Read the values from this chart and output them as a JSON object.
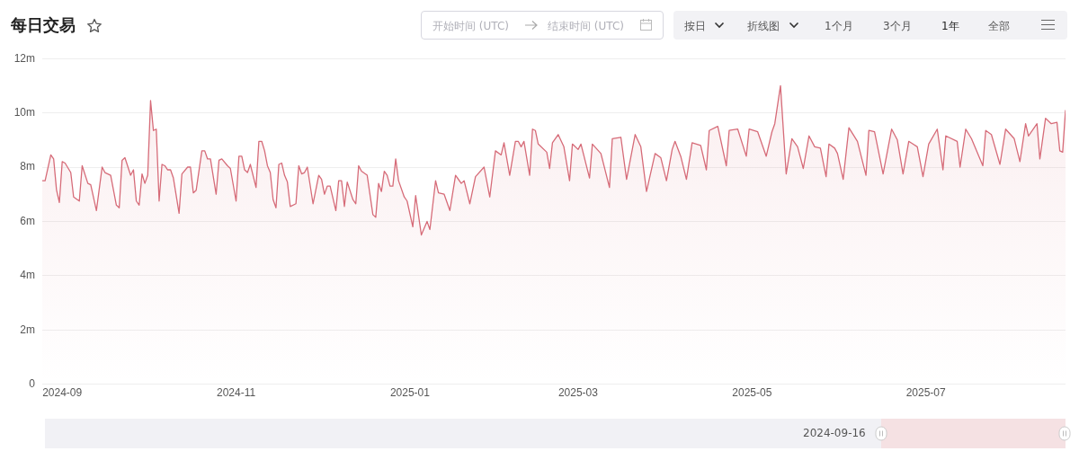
{
  "chart_data": {
    "type": "area",
    "title": "每日交易",
    "annotations": [
      "开始时间 (UTC)",
      "结束时间 (UTC)",
      "按日",
      "折线图",
      "1个月",
      "3个月",
      "1年",
      "全部",
      "2024-09-16"
    ],
    "x": [
      "2024-08-25",
      "2024-08-26",
      "2024-08-28",
      "2024-08-29",
      "2024-08-30",
      "2024-08-31",
      "2024-09-01",
      "2024-09-02",
      "2024-09-04",
      "2024-09-05",
      "2024-09-07",
      "2024-09-08",
      "2024-09-10",
      "2024-09-11",
      "2024-09-13",
      "2024-09-15",
      "2024-09-16",
      "2024-09-18",
      "2024-09-20",
      "2024-09-21",
      "2024-09-22",
      "2024-09-23",
      "2024-09-25",
      "2024-09-26",
      "2024-09-27",
      "2024-09-28",
      "2024-09-29",
      "2024-09-30",
      "2024-10-01",
      "2024-10-02",
      "2024-10-03",
      "2024-10-04",
      "2024-10-05",
      "2024-10-06",
      "2024-10-07",
      "2024-10-08",
      "2024-10-09",
      "2024-10-10",
      "2024-10-12",
      "2024-10-13",
      "2024-10-15",
      "2024-10-16",
      "2024-10-17",
      "2024-10-18",
      "2024-10-20",
      "2024-10-21",
      "2024-10-22",
      "2024-10-23",
      "2024-10-25",
      "2024-10-26",
      "2024-10-27",
      "2024-10-29",
      "2024-10-30",
      "2024-11-01",
      "2024-11-02",
      "2024-11-03",
      "2024-11-04",
      "2024-11-05",
      "2024-11-06",
      "2024-11-08",
      "2024-11-09",
      "2024-11-10",
      "2024-11-11",
      "2024-11-12",
      "2024-11-13",
      "2024-11-14",
      "2024-11-15",
      "2024-11-16",
      "2024-11-17",
      "2024-11-18",
      "2024-11-19",
      "2024-11-20",
      "2024-11-22",
      "2024-11-23",
      "2024-11-24",
      "2024-11-25",
      "2024-11-26",
      "2024-11-28",
      "2024-11-30",
      "2024-12-01",
      "2024-12-02",
      "2024-12-03",
      "2024-12-04",
      "2024-12-06",
      "2024-12-07",
      "2024-12-08",
      "2024-12-09",
      "2024-12-10",
      "2024-12-12",
      "2024-12-13",
      "2024-12-14",
      "2024-12-15",
      "2024-12-17",
      "2024-12-19",
      "2024-12-20",
      "2024-12-21",
      "2024-12-22",
      "2024-12-23",
      "2024-12-24",
      "2024-12-25",
      "2024-12-26",
      "2024-12-27",
      "2024-12-28",
      "2024-12-30",
      "2024-12-31",
      "2025-01-02",
      "2025-01-03",
      "2025-01-05",
      "2025-01-07",
      "2025-01-08",
      "2025-01-10",
      "2025-01-11",
      "2025-01-13",
      "2025-01-15",
      "2025-01-17",
      "2025-01-19",
      "2025-01-20",
      "2025-01-22",
      "2025-01-24",
      "2025-01-27",
      "2025-01-29",
      "2025-01-31",
      "2025-02-02",
      "2025-02-03",
      "2025-02-05",
      "2025-02-07",
      "2025-02-08",
      "2025-02-09",
      "2025-02-10",
      "2025-02-12",
      "2025-02-13",
      "2025-02-14",
      "2025-02-15",
      "2025-02-18",
      "2025-02-19",
      "2025-02-20",
      "2025-02-22",
      "2025-02-24",
      "2025-02-26",
      "2025-02-27",
      "2025-03-01",
      "2025-03-02",
      "2025-03-05",
      "2025-03-06",
      "2025-03-09",
      "2025-03-12",
      "2025-03-13",
      "2025-03-16",
      "2025-03-18",
      "2025-03-21",
      "2025-03-23",
      "2025-03-25",
      "2025-03-28",
      "2025-03-30",
      "2025-04-01",
      "2025-04-03",
      "2025-04-04",
      "2025-04-06",
      "2025-04-08",
      "2025-04-10",
      "2025-04-13",
      "2025-04-15",
      "2025-04-16",
      "2025-04-19",
      "2025-04-22",
      "2025-04-23",
      "2025-04-26",
      "2025-04-29",
      "2025-04-30",
      "2025-05-03",
      "2025-05-06",
      "2025-05-08",
      "2025-05-09",
      "2025-05-11",
      "2025-05-13",
      "2025-05-15",
      "2025-05-17",
      "2025-05-19",
      "2025-05-21",
      "2025-05-23",
      "2025-05-25",
      "2025-05-27",
      "2025-05-28",
      "2025-05-30",
      "2025-05-31",
      "2025-06-02",
      "2025-06-04",
      "2025-06-07",
      "2025-06-10",
      "2025-06-11",
      "2025-06-13",
      "2025-06-16",
      "2025-06-19",
      "2025-06-21",
      "2025-06-23",
      "2025-06-25",
      "2025-06-28",
      "2025-06-30",
      "2025-07-02",
      "2025-07-05",
      "2025-07-07",
      "2025-07-08",
      "2025-07-12",
      "2025-07-13",
      "2025-07-15",
      "2025-07-17",
      "2025-07-21",
      "2025-07-22",
      "2025-07-24",
      "2025-07-27",
      "2025-07-29",
      "2025-08-01",
      "2025-08-03",
      "2025-08-05",
      "2025-08-06",
      "2025-08-09",
      "2025-08-10",
      "2025-08-12",
      "2025-08-14",
      "2025-08-16",
      "2025-08-17",
      "2025-08-18",
      "2025-08-19"
    ],
    "series": [
      {
        "color": "#d66b78",
        "values": [
          7.5,
          7.5,
          8.45,
          8.3,
          7.16,
          6.7,
          8.2,
          8.15,
          7.8,
          6.9,
          6.75,
          8.05,
          7.4,
          7.35,
          6.4,
          8.0,
          7.8,
          7.7,
          6.6,
          6.5,
          8.25,
          8.35,
          7.7,
          7.9,
          6.75,
          6.6,
          7.75,
          7.4,
          7.7,
          10.45,
          9.35,
          9.4,
          6.75,
          8.1,
          8.05,
          7.9,
          7.9,
          7.6,
          6.3,
          7.75,
          8.0,
          8.0,
          7.05,
          7.15,
          8.6,
          8.6,
          8.3,
          8.3,
          7.0,
          8.25,
          8.3,
          8.05,
          7.95,
          6.75,
          8.4,
          8.4,
          7.9,
          7.8,
          8.1,
          7.25,
          8.95,
          8.95,
          8.6,
          8.05,
          7.8,
          6.8,
          6.5,
          8.1,
          8.15,
          7.7,
          7.45,
          6.55,
          6.65,
          8.05,
          7.75,
          7.8,
          8.0,
          6.65,
          7.7,
          7.55,
          7.0,
          7.3,
          7.3,
          6.4,
          7.5,
          7.5,
          6.55,
          7.45,
          6.8,
          6.65,
          8.05,
          7.85,
          7.7,
          6.25,
          6.15,
          7.4,
          7.1,
          7.85,
          7.7,
          7.3,
          7.3,
          8.3,
          7.5,
          6.9,
          6.75,
          5.8,
          6.95,
          5.5,
          6.0,
          5.7,
          7.5,
          7.05,
          7.0,
          6.4,
          7.7,
          7.4,
          7.5,
          6.65,
          7.65,
          8.0,
          6.9,
          8.6,
          8.45,
          8.9,
          7.7,
          8.95,
          8.95,
          8.75,
          8.95,
          7.7,
          9.4,
          9.35,
          8.85,
          8.55,
          7.95,
          8.9,
          9.2,
          8.75,
          7.5,
          8.85,
          8.65,
          8.85,
          7.6,
          8.85,
          8.5,
          7.25,
          9.05,
          9.1,
          7.55,
          9.2,
          8.75,
          7.1,
          8.5,
          8.35,
          7.5,
          8.65,
          8.95,
          8.4,
          7.55,
          8.9,
          8.8,
          7.9,
          9.35,
          9.5,
          8.05,
          9.35,
          9.4,
          8.4,
          9.4,
          9.3,
          8.4,
          9.3,
          9.6,
          11.0,
          7.75,
          9.05,
          8.75,
          7.95,
          9.15,
          8.75,
          8.7,
          7.65,
          8.85,
          8.7,
          8.5,
          7.55,
          9.45,
          8.95,
          7.7,
          9.35,
          9.3,
          7.75,
          9.4,
          9.0,
          7.75,
          8.95,
          8.75,
          7.65,
          8.85,
          9.4,
          7.9,
          9.15,
          8.95,
          8.0,
          9.4,
          9.05,
          8.05,
          9.35,
          9.2,
          8.1,
          9.4,
          9.05,
          8.2,
          9.6,
          9.15,
          9.6,
          8.3,
          9.8,
          9.6,
          9.65,
          8.6,
          8.55,
          10.1
        ]
      }
    ],
    "xlim": [
      "2024-08-25",
      "2025-08-19"
    ],
    "xticks": [
      {
        "value": "2024-09-01",
        "label": "2024-09"
      },
      {
        "value": "2024-11-01",
        "label": "2024-11"
      },
      {
        "value": "2025-01-01",
        "label": "2025-01"
      },
      {
        "value": "2025-03-01",
        "label": "2025-03"
      },
      {
        "value": "2025-05-01",
        "label": "2025-05"
      },
      {
        "value": "2025-07-01",
        "label": "2025-07"
      }
    ],
    "ylim": [
      0,
      12
    ],
    "yticks": [
      0,
      {
        "value": 2,
        "label": "2m"
      },
      {
        "value": 4,
        "label": "4m"
      },
      {
        "value": 6,
        "label": "6m"
      },
      {
        "value": 8,
        "label": "8m"
      },
      {
        "value": 10,
        "label": "10m"
      },
      {
        "value": 12,
        "label": "12m"
      }
    ],
    "grid": "y",
    "marker": "none",
    "line_style": "solid"
  }
}
